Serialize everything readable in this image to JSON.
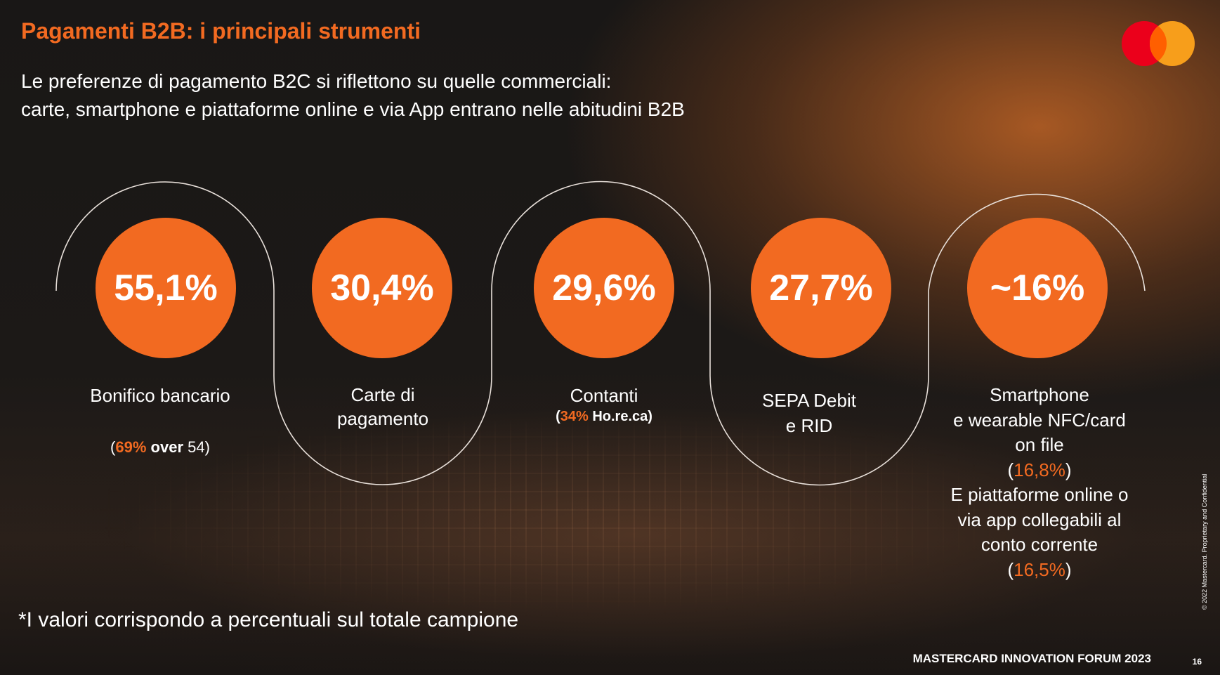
{
  "title": "Pagamenti B2B: i principali strumenti",
  "subtitle": {
    "line1": "Le preferenze di pagamento B2C si riflettono su quelle commerciali:",
    "line2": "carte, smartphone e piattaforme online e via App entrano nelle abitudini B2B"
  },
  "colors": {
    "accent": "#f26a21",
    "logo_red": "#eb001b",
    "logo_yellow": "#f79e1b"
  },
  "items": [
    {
      "value": "55,1%",
      "label_lines": [
        "Bonifico bancario"
      ],
      "note": {
        "open": "(",
        "pct": "69%",
        "word": " over",
        "rest": " 54",
        "close": ")"
      }
    },
    {
      "value": "30,4%",
      "label_lines": [
        "Carte di",
        "pagamento"
      ]
    },
    {
      "value": "29,6%",
      "label_lines": [
        "Contanti"
      ],
      "note": {
        "open": "(",
        "pct": "34%",
        "rest": " Ho.re.ca",
        "close": ")"
      }
    },
    {
      "value": "27,7%",
      "label_lines": [
        "SEPA Debit",
        "e RID"
      ]
    },
    {
      "value": "~16%",
      "label_lines": [
        "Smartphone",
        "e wearable NFC/card",
        "on file"
      ],
      "pct1": "16,8%",
      "label_lines2": [
        "E piattaforme online o",
        "via app collegabili al",
        "conto corrente"
      ],
      "pct2": "16,5%"
    }
  ],
  "footnote": "*I valori corrispondo a percentuali sul totale campione",
  "footer": {
    "brand": "MASTERCARD INNOVATION FORUM 2023",
    "page": "16",
    "copyright": "© 2022 Mastercard. Proprietary and Confidential"
  }
}
